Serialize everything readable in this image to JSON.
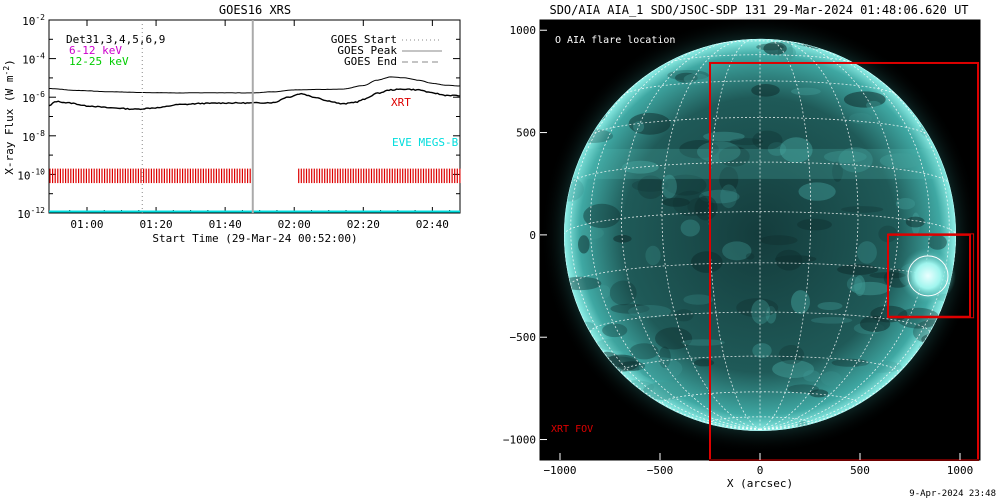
{
  "goes_panel": {
    "title": "GOES16 XRS",
    "ylabel_main": "X-ray Flux (W m",
    "ylabel_sup": "-2",
    "ylabel_end": ")",
    "xlabel": "Start Time (29-Mar-24 00:52:00)",
    "det_label": "Det31,3,4,5,6,9",
    "band1_label": "6-12 keV",
    "band2_label": "12-25 keV",
    "legend": [
      {
        "label": "GOES Start",
        "style": "dotted"
      },
      {
        "label": "GOES Peak",
        "style": "solid"
      },
      {
        "label": "GOES End",
        "style": "dashed"
      }
    ],
    "xrt_label": "XRT",
    "eve_label": "EVE MEGS-B",
    "colors": {
      "band1": "#cc00cc",
      "band2": "#00cc00",
      "xrt": "#dd0000",
      "eve": "#00dddd"
    }
  },
  "aia_panel": {
    "title": "SDO/AIA AIA_1 SDO/JSOC-SDP 131 29-Mar-2024 01:48:06.620 UT",
    "flare_legend": "O AIA flare location",
    "xrt_fov_label": "XRT FOV",
    "xlabel": "X (arcsec)",
    "footer": "9-Apr-2024 23:48",
    "colors": {
      "fov": "#dd0000",
      "disk": "#5fd6d0"
    }
  },
  "chart_data": [
    {
      "type": "line",
      "name": "goes_xrs",
      "title": "GOES16 XRS",
      "xlabel": "Start Time (29-Mar-24 00:52:00)",
      "ylabel": "X-ray Flux (W m^-2)",
      "yscale": "log",
      "xlim_minutes": [
        -3,
        116
      ],
      "ylim_exp": [
        -12,
        -2
      ],
      "x_ticks": [
        {
          "minute": 8,
          "label": "01:00"
        },
        {
          "minute": 28,
          "label": "01:20"
        },
        {
          "minute": 48,
          "label": "01:40"
        },
        {
          "minute": 68,
          "label": "02:00"
        },
        {
          "minute": 88,
          "label": "02:20"
        },
        {
          "minute": 108,
          "label": "02:40"
        }
      ],
      "y_ticks": [
        {
          "exp": -2,
          "label": "10",
          "sup": "-2"
        },
        {
          "exp": -4,
          "label": "10",
          "sup": "-4"
        },
        {
          "exp": -6,
          "label": "10",
          "sup": "-6"
        },
        {
          "exp": -8,
          "label": "10",
          "sup": "-8"
        },
        {
          "exp": -10,
          "label": "10",
          "sup": "-10"
        },
        {
          "exp": -12,
          "label": "10",
          "sup": "-12"
        }
      ],
      "series": [
        {
          "name": "GOES long channel",
          "minute": [
            -3,
            5,
            15,
            25,
            35,
            45,
            55,
            62,
            68,
            75,
            82,
            88,
            92,
            96,
            100,
            104,
            108,
            112,
            116
          ],
          "log_flux": [
            -5.55,
            -5.65,
            -5.72,
            -5.76,
            -5.78,
            -5.77,
            -5.78,
            -5.72,
            -5.62,
            -5.6,
            -5.58,
            -5.4,
            -5.12,
            -4.95,
            -5.0,
            -5.12,
            -5.28,
            -5.38,
            -5.42
          ]
        },
        {
          "name": "GOES short channel",
          "minute": [
            -3,
            -1,
            3,
            8,
            15,
            22,
            28,
            35,
            42,
            48,
            55,
            62,
            66,
            70,
            74,
            78,
            82,
            86,
            88,
            92,
            96,
            100,
            104,
            108,
            112,
            116
          ],
          "log_flux": [
            -6.45,
            -6.22,
            -6.3,
            -6.45,
            -6.55,
            -6.62,
            -6.55,
            -6.38,
            -6.32,
            -6.3,
            -6.3,
            -6.28,
            -6.0,
            -5.82,
            -6.0,
            -6.2,
            -6.35,
            -6.25,
            -6.12,
            -5.8,
            -5.62,
            -5.58,
            -5.62,
            -5.78,
            -5.9,
            -5.92
          ]
        }
      ],
      "goes_start_minute": 24,
      "goes_peak_minute": 56,
      "xrt_coverage_minutes": [
        [
          -3,
          56
        ],
        [
          69,
          116
        ]
      ],
      "eve_level_exp": -12
    },
    {
      "type": "map",
      "name": "aia_131",
      "xlabel": "X (arcsec)",
      "xlim": [
        -1100,
        1100
      ],
      "ylim": [
        -1100,
        1050
      ],
      "x_ticks": [
        -1000,
        -500,
        0,
        500,
        1000
      ],
      "y_ticks": [
        -1000,
        -500,
        0,
        500,
        1000
      ],
      "solar_radius_arcsec": 980,
      "xrt_fov_outer": {
        "x": [
          -250,
          1090
        ],
        "y": [
          -1100,
          840
        ]
      },
      "xrt_fov_inner": {
        "x": [
          640,
          1050
        ],
        "y": [
          -400,
          0
        ]
      },
      "flare_location": {
        "x": 840,
        "y": -200,
        "r": 100
      }
    }
  ]
}
